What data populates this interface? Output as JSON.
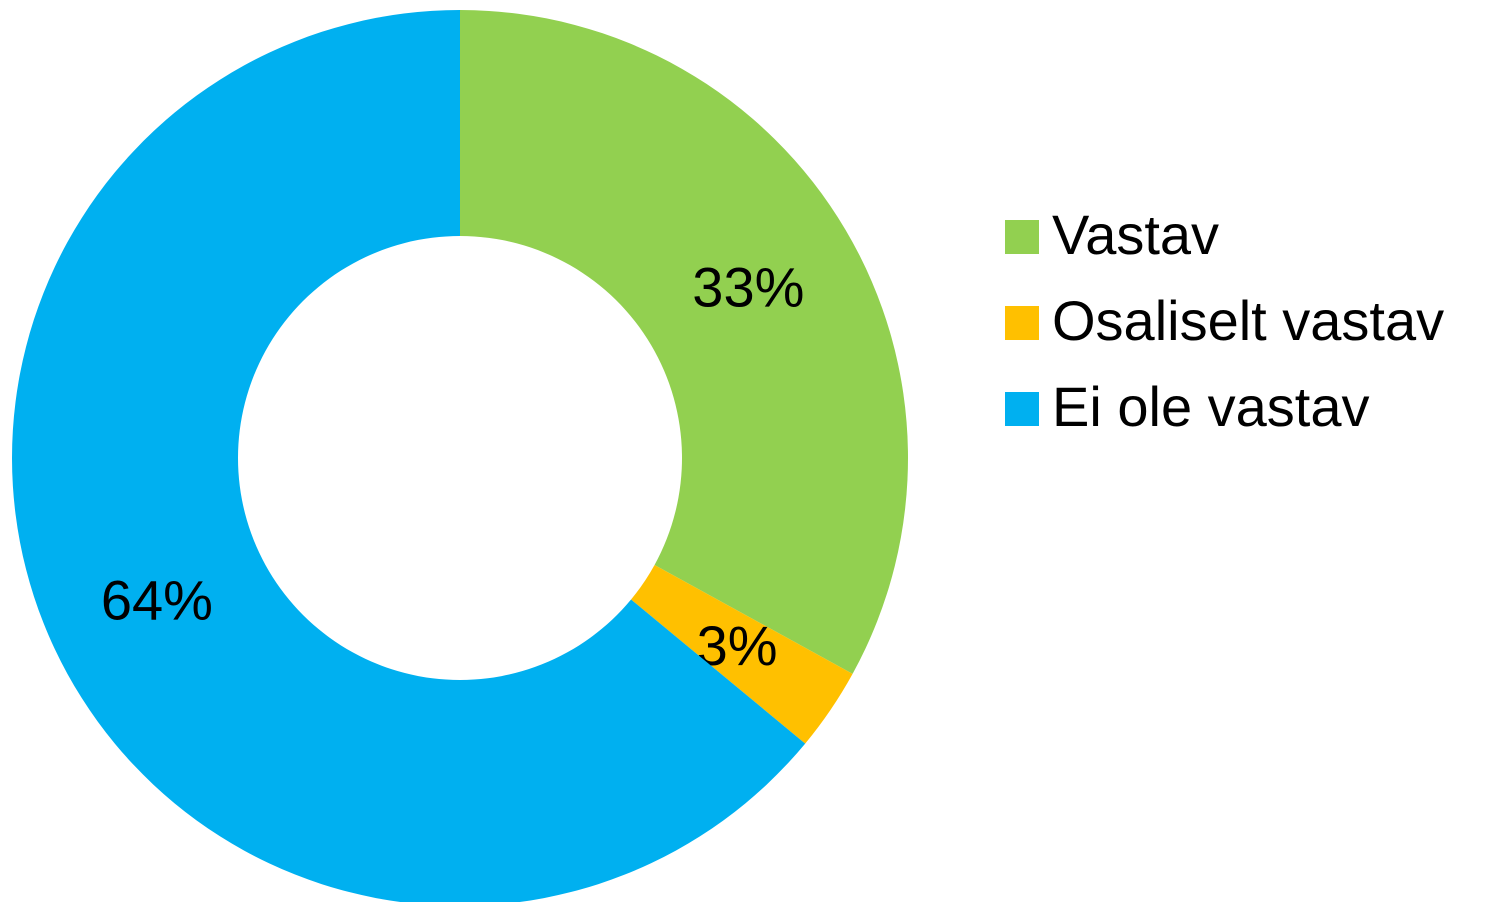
{
  "chart_data": {
    "type": "donut",
    "categories": [
      "Vastav",
      "Osaliselt vastav",
      "Ei ole vastav"
    ],
    "values": [
      33,
      3,
      64
    ],
    "value_labels": [
      "33%",
      "3%",
      "64%"
    ],
    "colors": [
      "#92D050",
      "#FFC000",
      "#00B0F0"
    ],
    "legend": "right"
  }
}
